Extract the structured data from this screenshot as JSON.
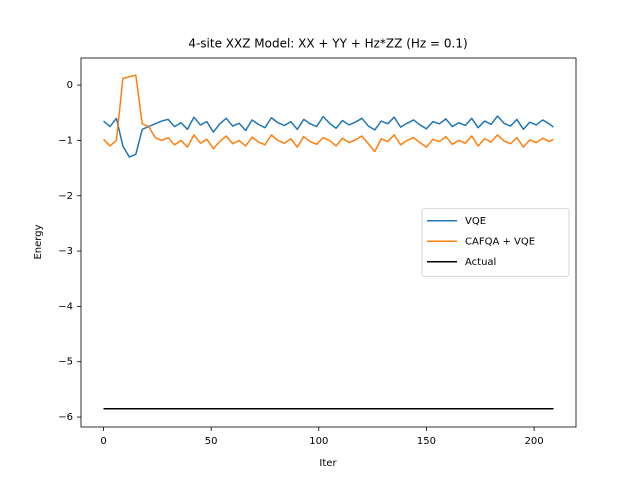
{
  "chart_data": {
    "type": "line",
    "title": "4-site XXZ Model: XX + YY + Hz*ZZ (Hz = 0.1)",
    "x_label": "Iter",
    "y_label": "Energy",
    "xlim": [
      -10.45,
      219.45
    ],
    "ylim": [
      -6.18,
      0.49
    ],
    "xticks": [
      0,
      50,
      100,
      150,
      200
    ],
    "yticks": [
      {
        "value": -6,
        "label": "−6"
      },
      {
        "value": -5,
        "label": "−5"
      },
      {
        "value": -4,
        "label": "−4"
      },
      {
        "value": -3,
        "label": "−3"
      },
      {
        "value": -2,
        "label": "−2"
      },
      {
        "value": -1,
        "label": "−1"
      },
      0
    ],
    "legend": "center right",
    "series": [
      {
        "name": "VQE",
        "color": "#1f77b4",
        "x": [
          0,
          3,
          6,
          9,
          12,
          15,
          18,
          21,
          24,
          27,
          30,
          33,
          36,
          39,
          42,
          45,
          48,
          51,
          54,
          57,
          60,
          63,
          66,
          69,
          72,
          75,
          78,
          81,
          84,
          87,
          90,
          93,
          96,
          99,
          102,
          105,
          108,
          111,
          114,
          117,
          120,
          123,
          126,
          129,
          132,
          135,
          138,
          141,
          144,
          147,
          150,
          153,
          156,
          159,
          162,
          165,
          168,
          171,
          174,
          177,
          180,
          183,
          186,
          189,
          192,
          195,
          198,
          201,
          204,
          207,
          209
        ],
        "values": [
          -0.65,
          -0.75,
          -0.6,
          -1.1,
          -1.3,
          -1.25,
          -0.8,
          -0.75,
          -0.7,
          -0.65,
          -0.62,
          -0.75,
          -0.68,
          -0.8,
          -0.58,
          -0.72,
          -0.66,
          -0.85,
          -0.7,
          -0.6,
          -0.74,
          -0.69,
          -0.82,
          -0.63,
          -0.71,
          -0.77,
          -0.59,
          -0.68,
          -0.73,
          -0.66,
          -0.8,
          -0.62,
          -0.7,
          -0.75,
          -0.57,
          -0.69,
          -0.78,
          -0.64,
          -0.72,
          -0.67,
          -0.6,
          -0.74,
          -0.81,
          -0.65,
          -0.7,
          -0.58,
          -0.76,
          -0.69,
          -0.63,
          -0.72,
          -0.79,
          -0.66,
          -0.7,
          -0.61,
          -0.75,
          -0.68,
          -0.73,
          -0.6,
          -0.77,
          -0.65,
          -0.71,
          -0.56,
          -0.69,
          -0.74,
          -0.62,
          -0.8,
          -0.67,
          -0.72,
          -0.63,
          -0.7,
          -0.76
        ]
      },
      {
        "name": "CAFQA + VQE",
        "color": "#ff7f0e",
        "x": [
          0,
          3,
          6,
          9,
          12,
          15,
          18,
          21,
          24,
          27,
          30,
          33,
          36,
          39,
          42,
          45,
          48,
          51,
          54,
          57,
          60,
          63,
          66,
          69,
          72,
          75,
          78,
          81,
          84,
          87,
          90,
          93,
          96,
          99,
          102,
          105,
          108,
          111,
          114,
          117,
          120,
          123,
          126,
          129,
          132,
          135,
          138,
          141,
          144,
          147,
          150,
          153,
          156,
          159,
          162,
          165,
          168,
          171,
          174,
          177,
          180,
          183,
          186,
          189,
          192,
          195,
          198,
          201,
          204,
          207,
          209
        ],
        "values": [
          -0.98,
          -1.1,
          -1.0,
          0.12,
          0.15,
          0.18,
          -0.7,
          -0.75,
          -0.95,
          -1.0,
          -0.95,
          -1.08,
          -1.0,
          -1.12,
          -0.9,
          -1.05,
          -0.98,
          -1.15,
          -1.02,
          -0.92,
          -1.06,
          -1.0,
          -1.1,
          -0.94,
          -1.03,
          -1.08,
          -0.9,
          -1.0,
          -1.05,
          -0.97,
          -1.12,
          -0.93,
          -1.02,
          -1.07,
          -0.95,
          -1.0,
          -1.1,
          -0.96,
          -1.04,
          -0.99,
          -0.92,
          -1.06,
          -1.2,
          -0.97,
          -1.02,
          -0.9,
          -1.08,
          -1.0,
          -0.95,
          -1.04,
          -1.12,
          -0.98,
          -1.02,
          -0.93,
          -1.07,
          -1.0,
          -1.05,
          -0.92,
          -1.1,
          -0.97,
          -1.03,
          -0.9,
          -1.01,
          -1.06,
          -0.95,
          -1.12,
          -0.99,
          -1.04,
          -0.96,
          -1.02,
          -0.98
        ]
      },
      {
        "name": "Actual",
        "color": "#000000",
        "x": [
          0,
          209
        ],
        "values": [
          -5.85,
          -5.85
        ]
      }
    ]
  }
}
